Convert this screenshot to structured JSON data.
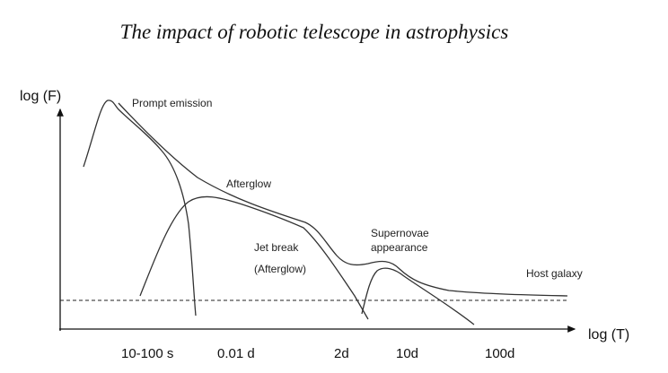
{
  "title": "The impact of robotic telescope in astrophysics",
  "axes": {
    "y_label": "log (F)",
    "x_label": "log (T)"
  },
  "labels": {
    "prompt": "Prompt emission",
    "afterglow": "Afterglow",
    "jet_break": "Jet break",
    "jet_break_sub": "(Afterglow)",
    "supernovae_1": "Supernovae",
    "supernovae_2": "appearance",
    "host": "Host galaxy"
  },
  "x_ticks": [
    "10-100 s",
    "0.01 d",
    "2d",
    "10d",
    "100d"
  ]
}
